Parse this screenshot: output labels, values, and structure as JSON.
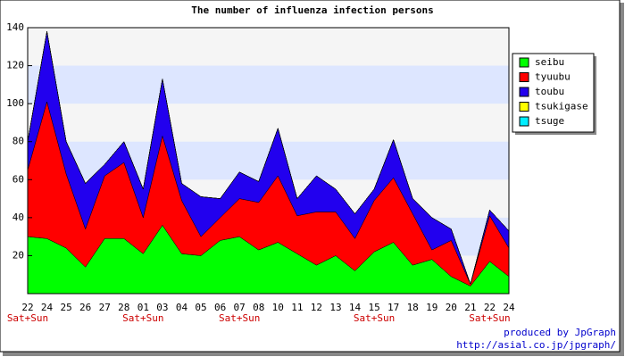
{
  "chart_data": {
    "type": "stacked_area",
    "title": "The number of influenza infection persons",
    "categories": [
      "22",
      "24",
      "25",
      "26",
      "27",
      "28",
      "01",
      "03",
      "04",
      "05",
      "06",
      "07",
      "08",
      "10",
      "11",
      "12",
      "13",
      "14",
      "15",
      "17",
      "18",
      "19",
      "20",
      "21",
      "22",
      "24"
    ],
    "category_notes": [
      "Sat+Sun",
      null,
      null,
      null,
      null,
      null,
      "Sat+Sun",
      null,
      null,
      null,
      null,
      "Sat+Sun",
      null,
      null,
      null,
      null,
      null,
      null,
      "Sat+Sun",
      null,
      null,
      null,
      null,
      null,
      "Sat+Sun",
      null
    ],
    "series": [
      {
        "name": "seibu",
        "color": "#00ff00",
        "values": [
          30,
          29,
          24,
          14,
          29,
          29,
          21,
          36,
          21,
          20,
          28,
          30,
          23,
          27,
          21,
          15,
          20,
          12,
          22,
          27,
          15,
          18,
          9,
          4,
          17,
          9
        ]
      },
      {
        "name": "tyuubu",
        "color": "#ff0000",
        "values": [
          35,
          72,
          39,
          20,
          33,
          40,
          19,
          47,
          28,
          10,
          12,
          20,
          25,
          35,
          20,
          28,
          23,
          17,
          27,
          34,
          27,
          5,
          19,
          1,
          24,
          15
        ]
      },
      {
        "name": "toubu",
        "color": "#2200ee",
        "values": [
          15,
          37,
          17,
          24,
          6,
          11,
          15,
          30,
          9,
          21,
          10,
          14,
          11,
          25,
          9,
          19,
          12,
          13,
          6,
          20,
          8,
          17,
          6,
          0,
          3,
          9
        ]
      },
      {
        "name": "tsukigase",
        "color": "#ffff00",
        "values": [
          0,
          0,
          0,
          0,
          0,
          0,
          0,
          0,
          0,
          0,
          0,
          0,
          0,
          0,
          0,
          0,
          0,
          0,
          0,
          0,
          0,
          0,
          0,
          0,
          0,
          0
        ]
      },
      {
        "name": "tsuge",
        "color": "#00eeff",
        "values": [
          0,
          0,
          0,
          0,
          0,
          0,
          0,
          0,
          0,
          0,
          0,
          0,
          0,
          0,
          0,
          0,
          0,
          0,
          0,
          0,
          0,
          0,
          0,
          0,
          0,
          0
        ]
      }
    ],
    "ylim": [
      0,
      140
    ],
    "yticks": [
      20,
      40,
      60,
      80,
      100,
      120,
      140
    ],
    "grid": true,
    "legend": "top-right",
    "credits": [
      "produced by JpGraph",
      "http://asial.co.jp/jpgraph/"
    ]
  }
}
